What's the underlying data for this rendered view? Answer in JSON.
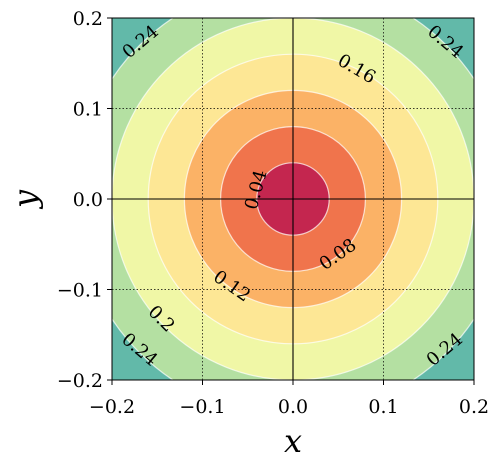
{
  "chart_data": {
    "type": "contour",
    "function": "sqrt(x^2 + y^2)",
    "xlabel": "x",
    "ylabel": "y",
    "xlim": [
      -0.2,
      0.2
    ],
    "ylim": [
      -0.2,
      0.2
    ],
    "grid": true,
    "xticks": [
      -0.2,
      -0.1,
      0.0,
      0.1,
      0.2
    ],
    "yticks": [
      -0.2,
      -0.1,
      0.0,
      0.1,
      0.2
    ],
    "xtick_labels": [
      "−0.2",
      "−0.1",
      "0.0",
      "0.1",
      "0.2"
    ],
    "ytick_labels": [
      "−0.2",
      "−0.1",
      "0.0",
      "0.1",
      "0.2"
    ],
    "levels": [
      0.04,
      0.08,
      0.12,
      0.16,
      0.2,
      0.24
    ],
    "fill_colors": [
      "#c4264f",
      "#e2584a",
      "#f0744c",
      "#fbb266",
      "#fde795",
      "#f0f7a6",
      "#b4e0a2",
      "#62b9a9"
    ],
    "line_color": "#ffffff",
    "contour_labels": [
      {
        "text": "0.04",
        "x": -0.04,
        "y": 0.01,
        "angle": -75
      },
      {
        "text": "0.08",
        "x": 0.05,
        "y": -0.062,
        "angle": -35
      },
      {
        "text": "0.12",
        "x": -0.068,
        "y": -0.097,
        "angle": 35
      },
      {
        "text": "0.16",
        "x": 0.07,
        "y": 0.143,
        "angle": 30
      },
      {
        "text": "0.2",
        "x": -0.146,
        "y": -0.133,
        "angle": 45
      },
      {
        "text": "0.24",
        "x": -0.168,
        "y": 0.173,
        "angle": -40
      },
      {
        "text": "0.24",
        "x": 0.168,
        "y": 0.173,
        "angle": 40
      },
      {
        "text": "0.24",
        "x": -0.17,
        "y": -0.167,
        "angle": 40
      },
      {
        "text": "0.24",
        "x": 0.168,
        "y": -0.167,
        "angle": -40
      }
    ]
  }
}
